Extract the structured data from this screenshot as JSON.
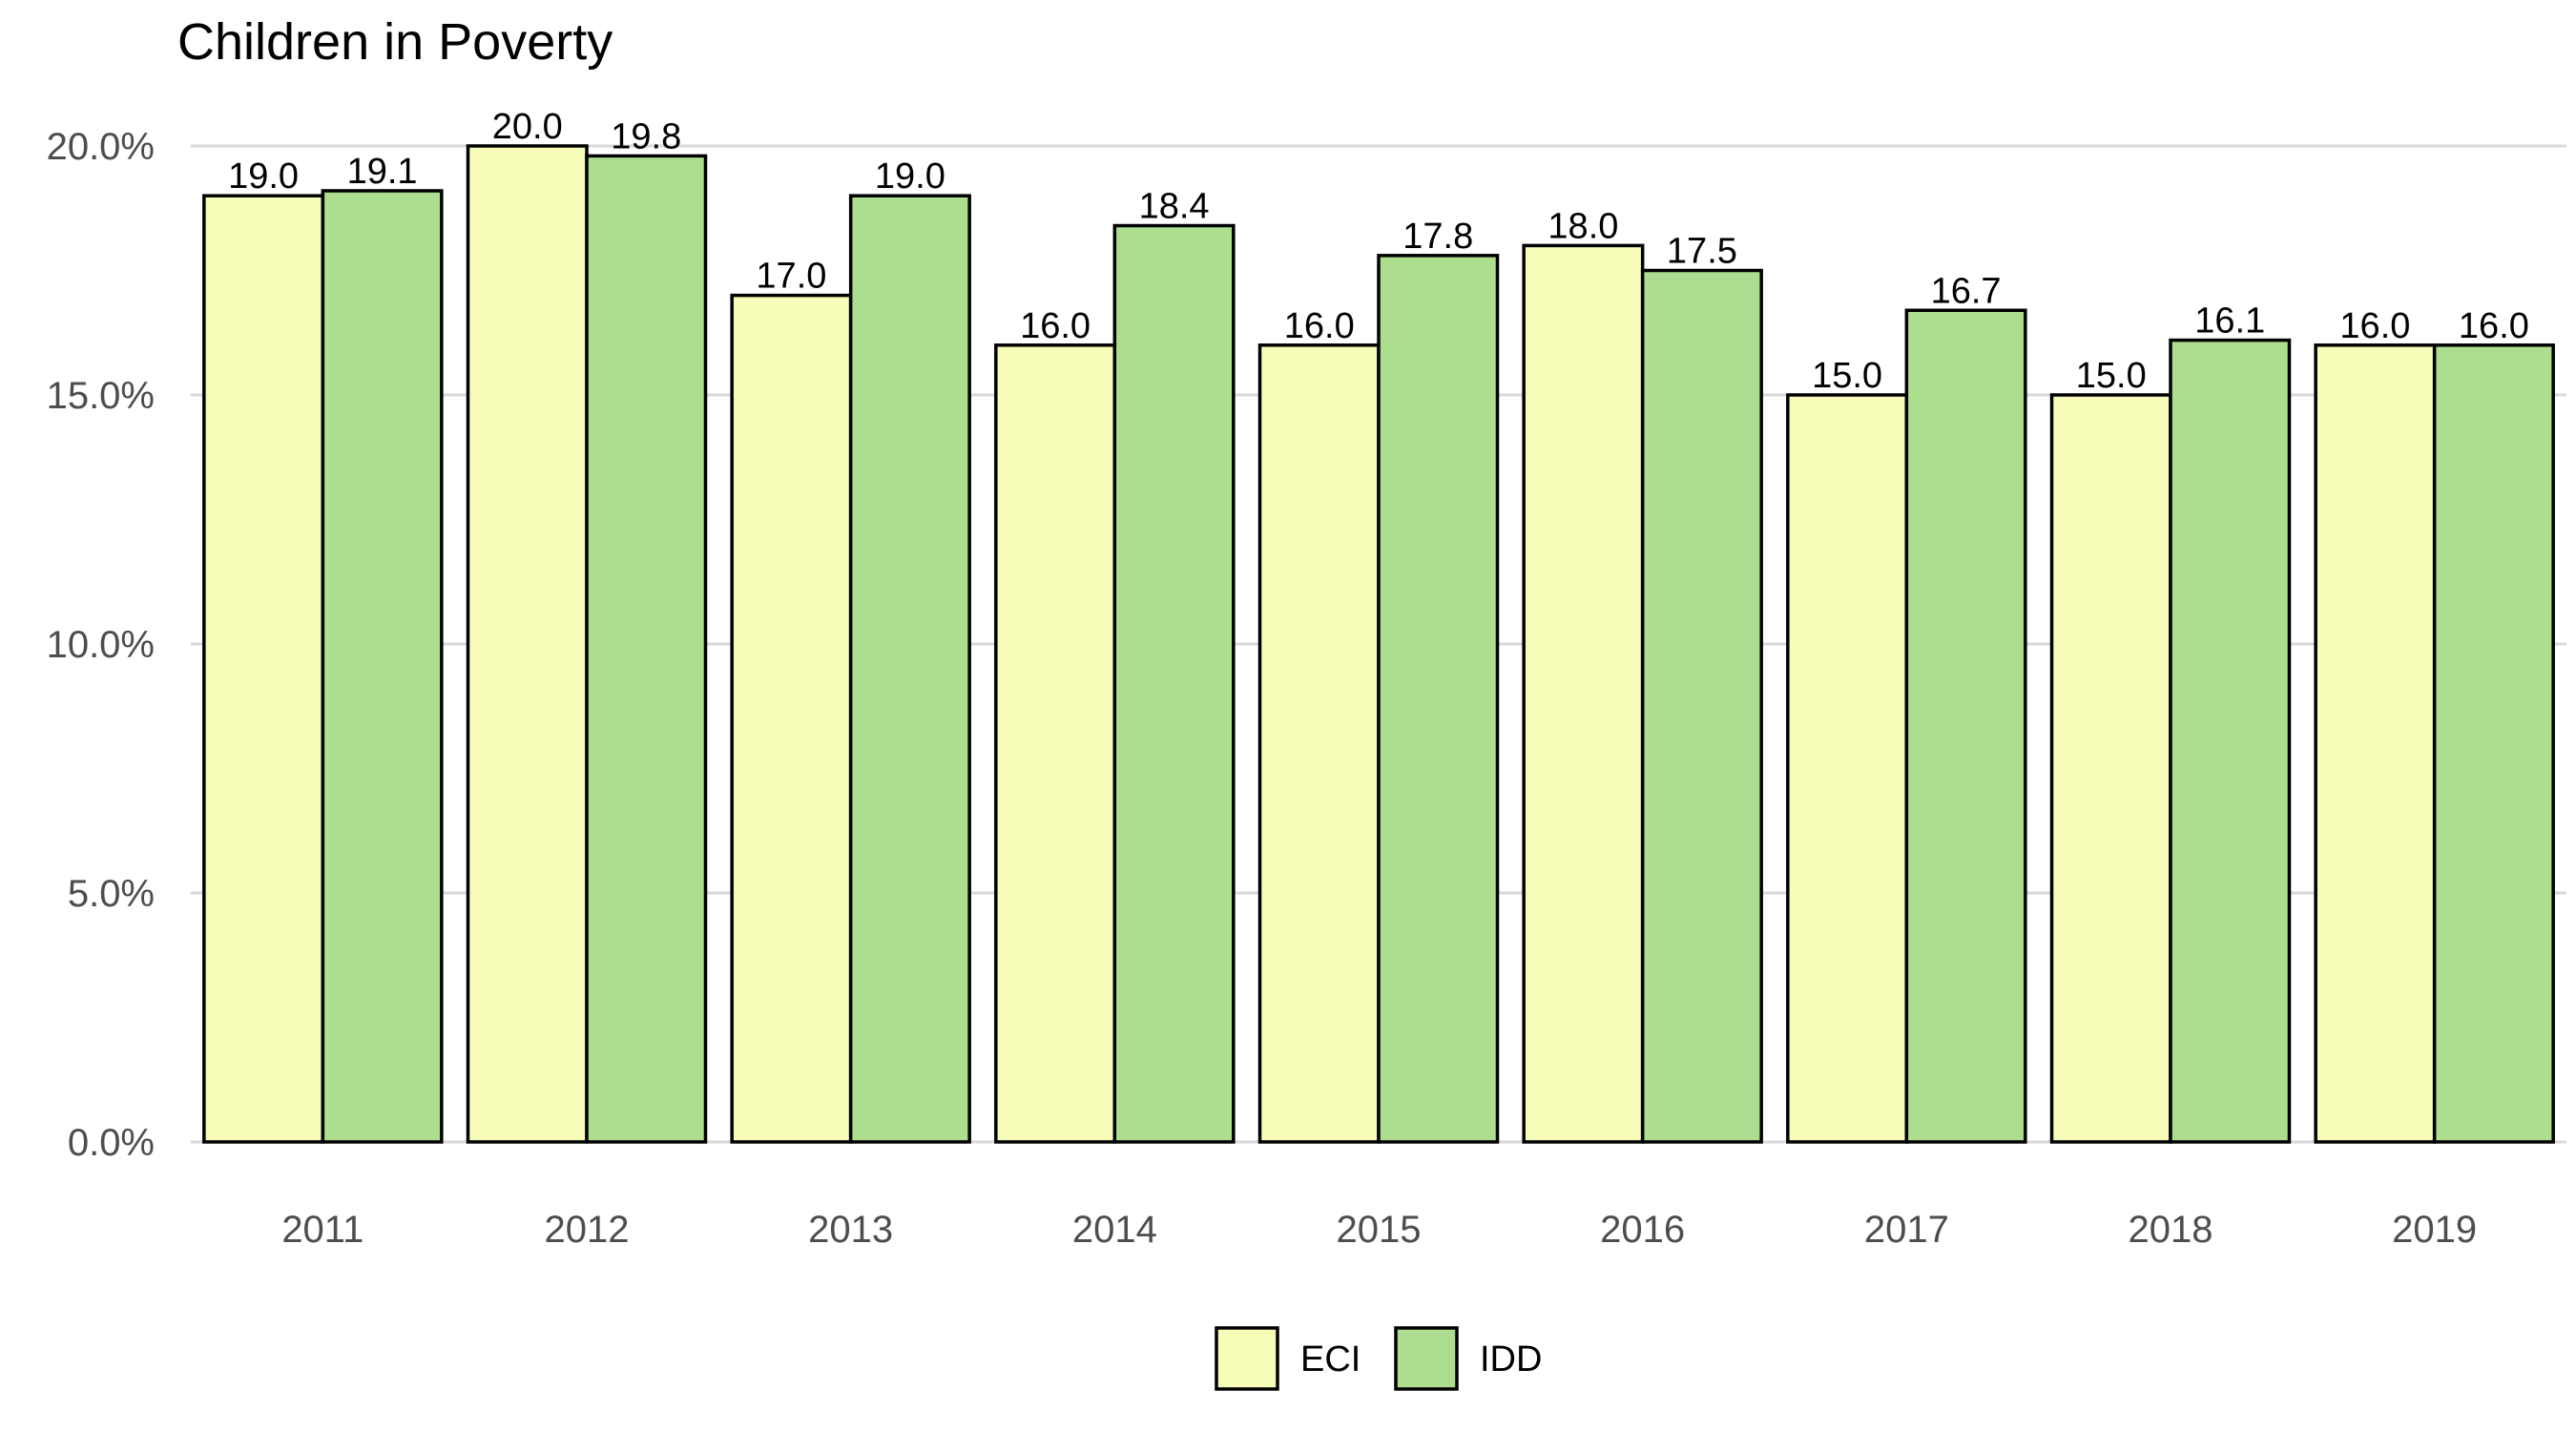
{
  "chart_data": {
    "type": "bar",
    "title": "Children in Poverty",
    "xlabel": "",
    "ylabel": "",
    "categories": [
      "2011",
      "2012",
      "2013",
      "2014",
      "2015",
      "2016",
      "2017",
      "2018",
      "2019"
    ],
    "series": [
      {
        "name": "ECI",
        "color": "#f7fcb9",
        "values": [
          19.0,
          20.0,
          17.0,
          16.0,
          16.0,
          18.0,
          15.0,
          15.0,
          16.0
        ],
        "labels": [
          "19.0",
          "20.0",
          "17.0",
          "16.0",
          "16.0",
          "18.0",
          "15.0",
          "15.0",
          "16.0"
        ]
      },
      {
        "name": "IDD",
        "color": "#addd8e",
        "values": [
          19.1,
          19.8,
          19.0,
          18.4,
          17.8,
          17.5,
          16.7,
          16.1,
          16.0
        ],
        "labels": [
          "19.1",
          "19.8",
          "19.0",
          "18.4",
          "17.8",
          "17.5",
          "16.7",
          "16.1",
          "16.0"
        ]
      }
    ],
    "ylim": [
      0,
      20
    ],
    "yticks": [
      0,
      5,
      10,
      15,
      20
    ],
    "ytick_labels": [
      "0.0%",
      "5.0%",
      "10.0%",
      "15.0%",
      "20.0%"
    ],
    "grid": "horizontal",
    "legend_position": "bottom"
  }
}
